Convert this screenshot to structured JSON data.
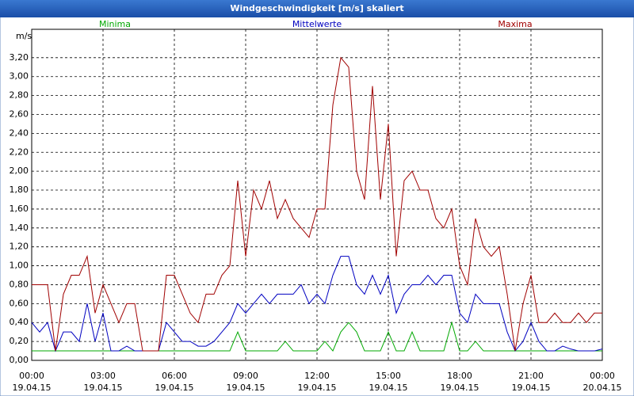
{
  "chart_data": {
    "type": "line",
    "title": "Windgeschwindigkeit [m/s] skaliert",
    "y_label": "m/s",
    "x": [
      0,
      20,
      40,
      60,
      80,
      100,
      120,
      140,
      160,
      180,
      200,
      220,
      240,
      260,
      280,
      300,
      320,
      340,
      360,
      380,
      400,
      420,
      440,
      460,
      480,
      500,
      520,
      540,
      560,
      580,
      600,
      620,
      640,
      660,
      680,
      700,
      720,
      740,
      760,
      780,
      800,
      820,
      840,
      860,
      880,
      900,
      920,
      940,
      960,
      980,
      1000,
      1020,
      1040,
      1060,
      1080,
      1100,
      1120,
      1140,
      1160,
      1180,
      1200,
      1220,
      1240,
      1260,
      1280,
      1300,
      1320,
      1340,
      1360,
      1380,
      1400,
      1420,
      1440
    ],
    "xlim": [
      0,
      1440
    ],
    "xticks": [
      {
        "value": 0,
        "label": "00:00 19.04.15"
      },
      {
        "value": 180,
        "label": "03:00 19.04.15"
      },
      {
        "value": 360,
        "label": "06:00 19.04.15"
      },
      {
        "value": 540,
        "label": "09:00 19.04.15"
      },
      {
        "value": 720,
        "label": "12:00 19.04.15"
      },
      {
        "value": 900,
        "label": "15:00 19.04.15"
      },
      {
        "value": 1080,
        "label": "18:00 19.04.15"
      },
      {
        "value": 1260,
        "label": "21:00 19.04.15"
      },
      {
        "value": 1440,
        "label": "00:00 20.04.15"
      }
    ],
    "ylim": [
      0,
      3.5
    ],
    "yticks": [
      {
        "value": 0,
        "label": "0,00"
      },
      {
        "value": 0.2,
        "label": "0,20"
      },
      {
        "value": 0.4,
        "label": "0,40"
      },
      {
        "value": 0.6,
        "label": "0,60"
      },
      {
        "value": 0.8,
        "label": "0,80"
      },
      {
        "value": 1.0,
        "label": "1,00"
      },
      {
        "value": 1.2,
        "label": "1,20"
      },
      {
        "value": 1.4,
        "label": "1,40"
      },
      {
        "value": 1.6,
        "label": "1,60"
      },
      {
        "value": 1.8,
        "label": "1,80"
      },
      {
        "value": 2.0,
        "label": "2,00"
      },
      {
        "value": 2.2,
        "label": "2,20"
      },
      {
        "value": 2.4,
        "label": "2,40"
      },
      {
        "value": 2.6,
        "label": "2,60"
      },
      {
        "value": 2.8,
        "label": "2,80"
      },
      {
        "value": 3.0,
        "label": "3,00"
      },
      {
        "value": 3.2,
        "label": "3,20"
      }
    ],
    "grid": true,
    "series": [
      {
        "name": "Minima",
        "color": "#00a800",
        "values": [
          0.1,
          0.1,
          0.1,
          0.1,
          0.1,
          0.1,
          0.1,
          0.1,
          0.1,
          0.1,
          0.1,
          0.1,
          0.1,
          0.1,
          0.1,
          0.1,
          0.1,
          0.1,
          0.1,
          0.1,
          0.1,
          0.1,
          0.1,
          0.1,
          0.1,
          0.1,
          0.3,
          0.1,
          0.1,
          0.1,
          0.1,
          0.1,
          0.2,
          0.1,
          0.1,
          0.1,
          0.1,
          0.2,
          0.1,
          0.3,
          0.4,
          0.3,
          0.1,
          0.1,
          0.1,
          0.3,
          0.1,
          0.1,
          0.3,
          0.1,
          0.1,
          0.1,
          0.1,
          0.4,
          0.1,
          0.1,
          0.2,
          0.1,
          0.1,
          0.1,
          0.1,
          0.1,
          0.1,
          0.1,
          0.1,
          0.1,
          0.1,
          0.1,
          0.1,
          0.1,
          0.1,
          0.1,
          0.1
        ]
      },
      {
        "name": "Mittelwerte",
        "color": "#0000c0",
        "values": [
          0.4,
          0.3,
          0.4,
          0.1,
          0.3,
          0.3,
          0.2,
          0.6,
          0.2,
          0.5,
          0.1,
          0.1,
          0.15,
          0.1,
          0.1,
          0.1,
          0.1,
          0.4,
          0.3,
          0.2,
          0.2,
          0.15,
          0.15,
          0.2,
          0.3,
          0.4,
          0.6,
          0.5,
          0.6,
          0.7,
          0.6,
          0.7,
          0.7,
          0.7,
          0.8,
          0.6,
          0.7,
          0.6,
          0.9,
          1.1,
          1.1,
          0.8,
          0.7,
          0.9,
          0.7,
          0.9,
          0.5,
          0.7,
          0.8,
          0.8,
          0.9,
          0.8,
          0.9,
          0.9,
          0.5,
          0.4,
          0.7,
          0.6,
          0.6,
          0.6,
          0.3,
          0.1,
          0.2,
          0.4,
          0.2,
          0.1,
          0.1,
          0.15,
          0.12,
          0.1,
          0.1,
          0.1,
          0.12
        ]
      },
      {
        "name": "Maxima",
        "color": "#a00000",
        "values": [
          0.8,
          0.8,
          0.8,
          0.1,
          0.7,
          0.9,
          0.9,
          1.1,
          0.5,
          0.8,
          0.6,
          0.4,
          0.6,
          0.6,
          0.1,
          0.1,
          0.1,
          0.9,
          0.9,
          0.7,
          0.5,
          0.4,
          0.7,
          0.7,
          0.9,
          1.0,
          1.9,
          1.1,
          1.8,
          1.6,
          1.9,
          1.5,
          1.7,
          1.5,
          1.4,
          1.3,
          1.6,
          1.6,
          2.7,
          3.2,
          3.1,
          2.0,
          1.7,
          2.9,
          1.7,
          2.5,
          1.1,
          1.9,
          2.0,
          1.8,
          1.8,
          1.5,
          1.4,
          1.6,
          1.0,
          0.8,
          1.5,
          1.2,
          1.1,
          1.2,
          0.7,
          0.1,
          0.6,
          0.9,
          0.4,
          0.4,
          0.5,
          0.4,
          0.4,
          0.5,
          0.4,
          0.5,
          0.5
        ]
      }
    ]
  }
}
